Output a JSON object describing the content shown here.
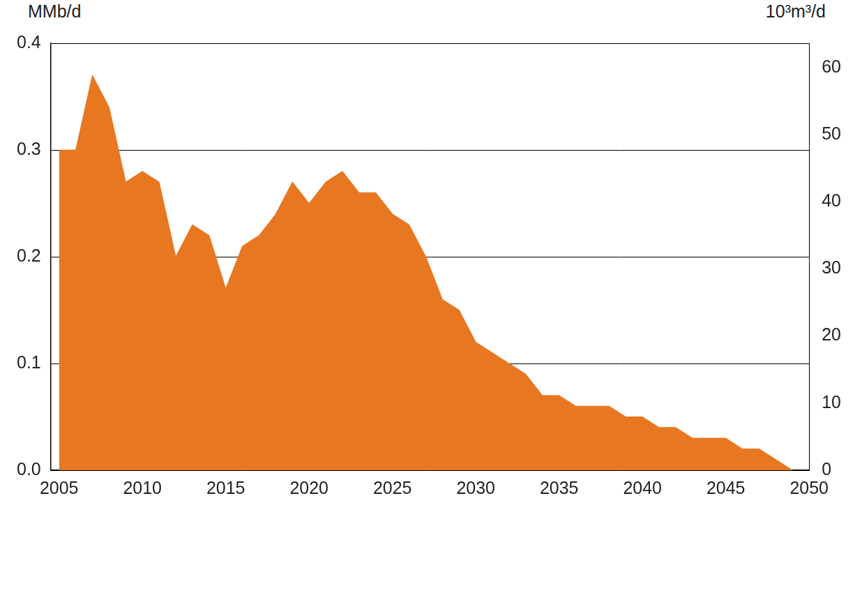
{
  "chart_data": {
    "type": "area",
    "y_label": "MMb/d",
    "y2_label": "10³m³/d",
    "x": [
      2005,
      2006,
      2007,
      2008,
      2009,
      2010,
      2011,
      2012,
      2013,
      2014,
      2015,
      2016,
      2017,
      2018,
      2019,
      2020,
      2021,
      2022,
      2023,
      2024,
      2025,
      2026,
      2027,
      2028,
      2029,
      2030,
      2031,
      2032,
      2033,
      2034,
      2035,
      2036,
      2037,
      2038,
      2039,
      2040,
      2041,
      2042,
      2043,
      2044,
      2045,
      2046,
      2047,
      2048,
      2049
    ],
    "values": [
      0.3,
      0.3,
      0.37,
      0.34,
      0.27,
      0.28,
      0.27,
      0.2,
      0.23,
      0.22,
      0.17,
      0.21,
      0.22,
      0.24,
      0.27,
      0.25,
      0.27,
      0.28,
      0.26,
      0.26,
      0.24,
      0.23,
      0.2,
      0.16,
      0.15,
      0.12,
      0.11,
      0.1,
      0.09,
      0.07,
      0.07,
      0.06,
      0.06,
      0.06,
      0.05,
      0.05,
      0.04,
      0.04,
      0.03,
      0.03,
      0.03,
      0.02,
      0.02,
      0.01,
      0.0
    ],
    "color": "#e87722",
    "xlim": [
      2004.5,
      2050
    ],
    "xticks": [
      2005,
      2010,
      2015,
      2020,
      2025,
      2030,
      2035,
      2040,
      2045,
      2050
    ],
    "ylim": [
      0,
      0.4
    ],
    "yticks": [
      {
        "value": 0,
        "label": "0.0"
      },
      0.1,
      0.2,
      0.3,
      0.4
    ],
    "y2lim": [
      0,
      63.6
    ],
    "y2ticks": [
      0,
      10,
      20,
      30,
      40,
      50,
      60
    ],
    "grid": true
  }
}
